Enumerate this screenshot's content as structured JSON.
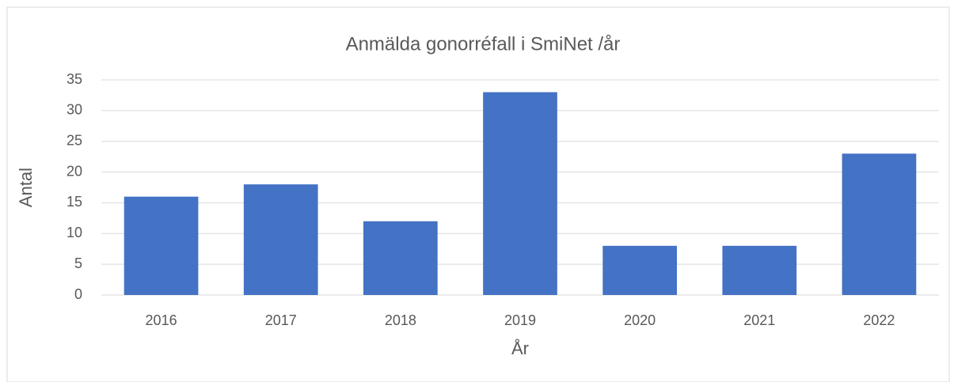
{
  "chart_data": {
    "type": "bar",
    "title": "Anmälda gonorréfall i SmiNet /år",
    "x_label": "År",
    "y_label": "Antal",
    "categories": [
      "2016",
      "2017",
      "2018",
      "2019",
      "2020",
      "2021",
      "2022"
    ],
    "values": [
      16,
      18,
      12,
      33,
      8,
      8,
      23
    ],
    "color": "#4472c4",
    "ylim": [
      0,
      35
    ],
    "yticks": [
      0,
      5,
      10,
      15,
      20,
      25,
      30,
      35
    ],
    "grid": true
  }
}
